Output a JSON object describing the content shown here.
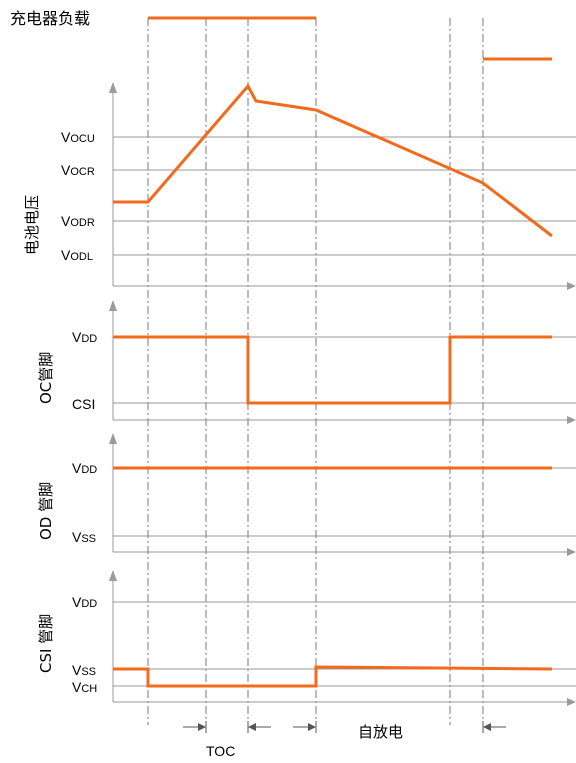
{
  "colors": {
    "waveform": "#f26a1b",
    "axis": "#9a9a9a",
    "dash": "#777777"
  },
  "title_load": "充电器负载",
  "panels": {
    "battery": {
      "axis_title": "电池电压",
      "levels": [
        {
          "main": "V",
          "sub": "OCU"
        },
        {
          "main": "V",
          "sub": "OCR"
        },
        {
          "main": "V",
          "sub": "ODR"
        },
        {
          "main": "V",
          "sub": "ODL"
        }
      ]
    },
    "oc": {
      "axis_title": "OC管脚",
      "levels": [
        {
          "main": "V",
          "sub": "DD"
        },
        {
          "main": "CSI",
          "sub": ""
        }
      ]
    },
    "od": {
      "axis_title": "OD 管脚",
      "levels": [
        {
          "main": "V",
          "sub": "DD"
        },
        {
          "main": "V",
          "sub": "SS"
        }
      ]
    },
    "csi": {
      "axis_title": "CSI 管脚",
      "levels": [
        {
          "main": "V",
          "sub": "DD"
        },
        {
          "main": "V",
          "sub": "SS"
        },
        {
          "main": "V",
          "sub": "CH"
        }
      ]
    }
  },
  "annotations": {
    "toc": "TOC",
    "self_discharge": "自放电"
  }
}
